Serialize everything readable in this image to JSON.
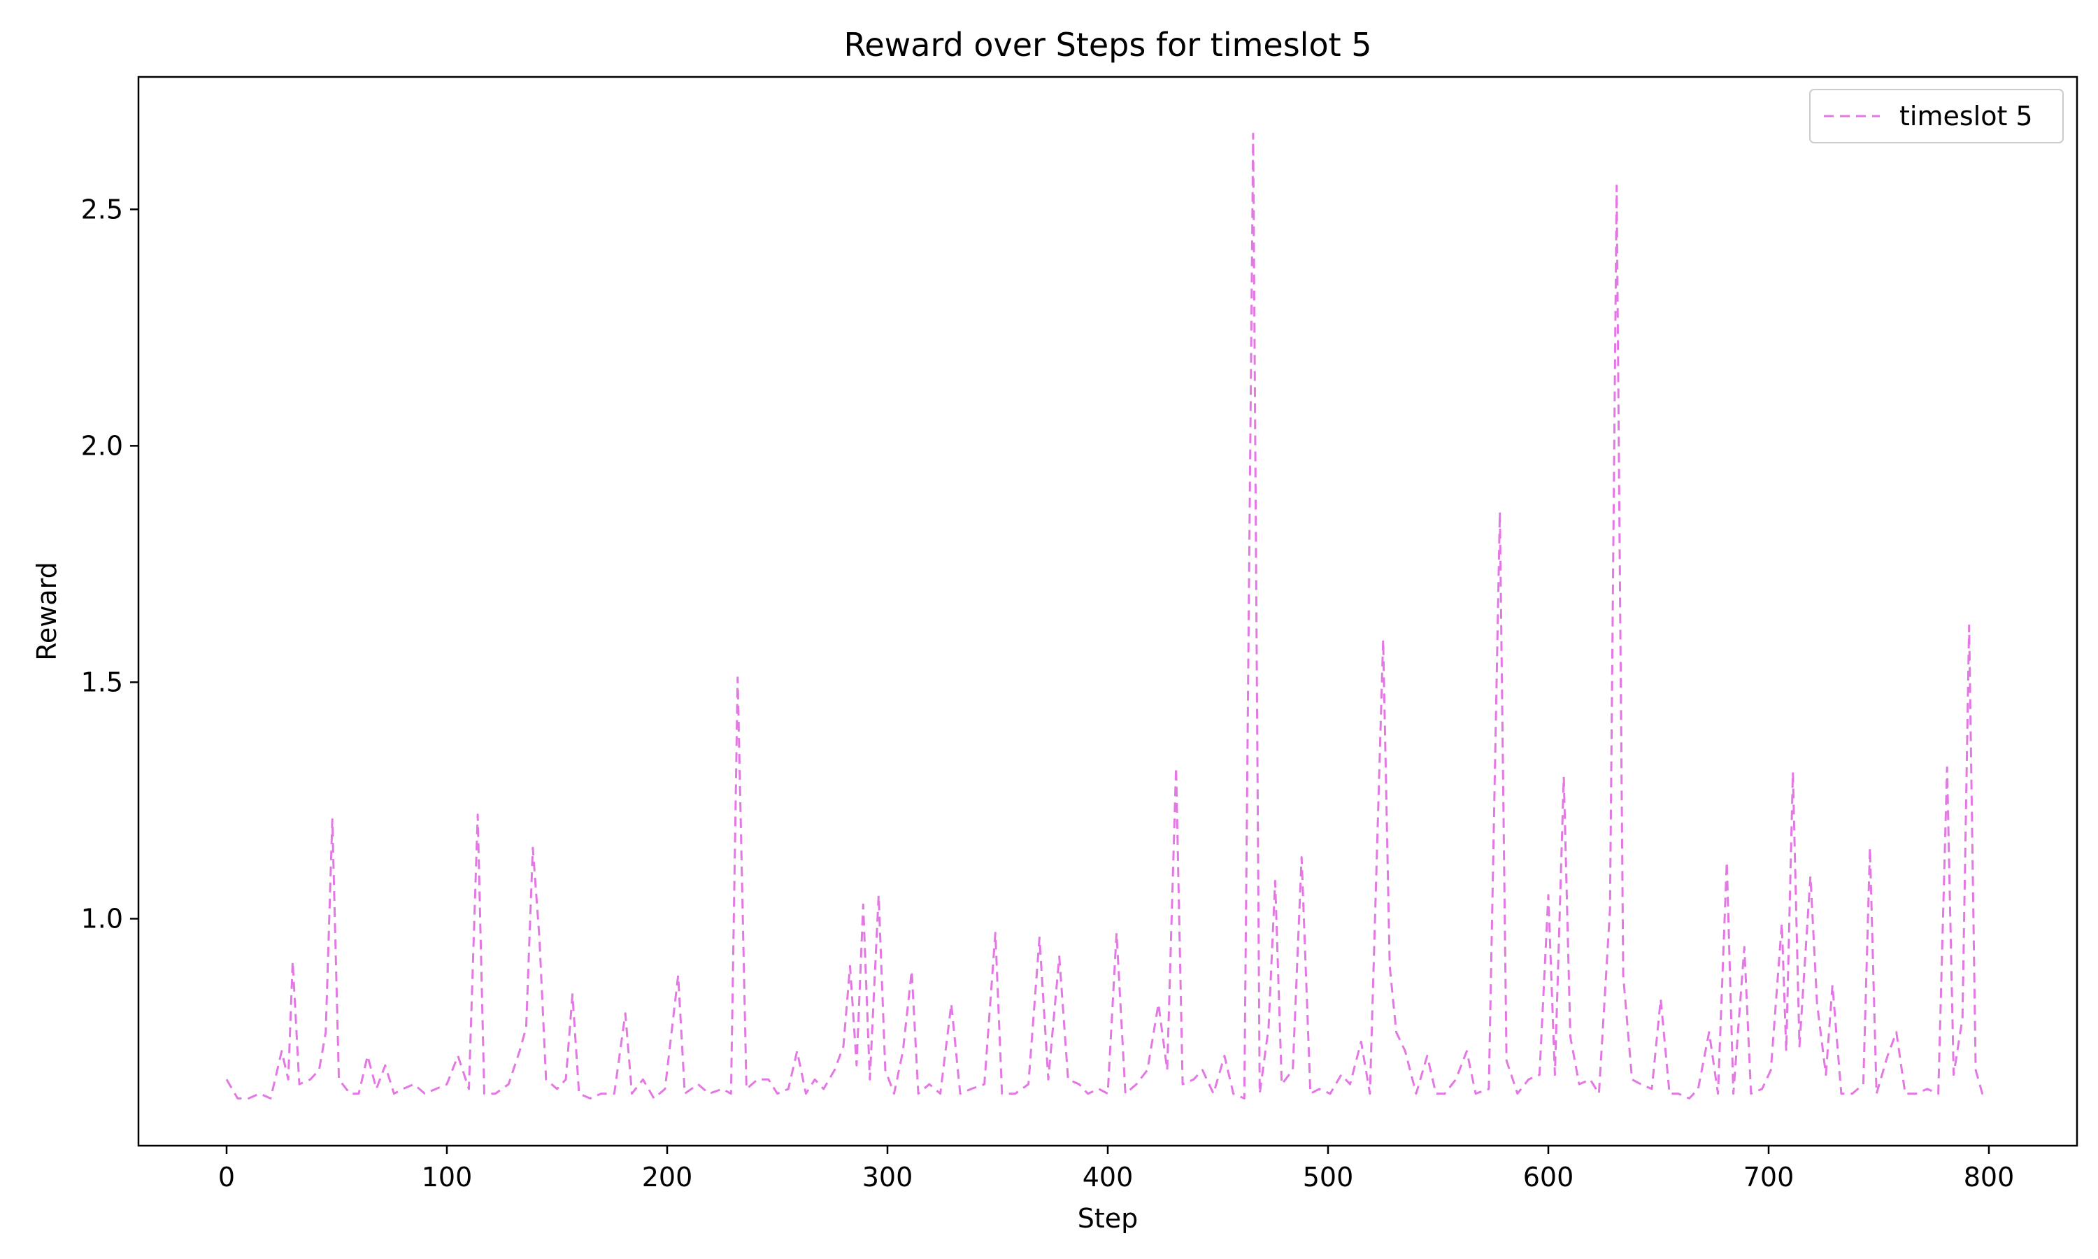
{
  "chart_data": {
    "type": "line",
    "title": "Reward over Steps for timeslot 5",
    "xlabel": "Step",
    "ylabel": "Reward",
    "xlim": [
      -40,
      840
    ],
    "ylim": [
      0.52,
      2.78
    ],
    "xticks": [
      0,
      100,
      200,
      300,
      400,
      500,
      600,
      700,
      800
    ],
    "yticks": [
      1.0,
      1.5,
      2.0,
      2.5
    ],
    "xtick_labels": [
      "0",
      "100",
      "200",
      "300",
      "400",
      "500",
      "600",
      "700",
      "800"
    ],
    "ytick_labels": [
      "1.0",
      "1.5",
      "2.0",
      "2.5"
    ],
    "grid": false,
    "legend_position": "top-right",
    "series": [
      {
        "name": "timeslot 5",
        "color": "#e377e3",
        "line_style": "dashed",
        "points": [
          [
            0,
            0.66
          ],
          [
            5,
            0.62
          ],
          [
            10,
            0.62
          ],
          [
            15,
            0.63
          ],
          [
            20,
            0.62
          ],
          [
            25,
            0.72
          ],
          [
            28,
            0.66
          ],
          [
            30,
            0.91
          ],
          [
            33,
            0.65
          ],
          [
            38,
            0.66
          ],
          [
            42,
            0.68
          ],
          [
            45,
            0.76
          ],
          [
            48,
            1.21
          ],
          [
            51,
            0.66
          ],
          [
            56,
            0.63
          ],
          [
            60,
            0.63
          ],
          [
            64,
            0.71
          ],
          [
            68,
            0.64
          ],
          [
            72,
            0.69
          ],
          [
            76,
            0.63
          ],
          [
            80,
            0.64
          ],
          [
            85,
            0.65
          ],
          [
            90,
            0.63
          ],
          [
            95,
            0.64
          ],
          [
            100,
            0.65
          ],
          [
            105,
            0.71
          ],
          [
            110,
            0.64
          ],
          [
            114,
            1.22
          ],
          [
            117,
            0.63
          ],
          [
            122,
            0.63
          ],
          [
            128,
            0.65
          ],
          [
            133,
            0.72
          ],
          [
            136,
            0.77
          ],
          [
            139,
            1.15
          ],
          [
            142,
            0.96
          ],
          [
            145,
            0.66
          ],
          [
            150,
            0.64
          ],
          [
            154,
            0.66
          ],
          [
            157,
            0.84
          ],
          [
            160,
            0.63
          ],
          [
            165,
            0.62
          ],
          [
            170,
            0.63
          ],
          [
            176,
            0.63
          ],
          [
            181,
            0.8
          ],
          [
            184,
            0.63
          ],
          [
            189,
            0.66
          ],
          [
            194,
            0.62
          ],
          [
            199,
            0.64
          ],
          [
            205,
            0.88
          ],
          [
            208,
            0.63
          ],
          [
            214,
            0.65
          ],
          [
            219,
            0.63
          ],
          [
            225,
            0.64
          ],
          [
            229,
            0.63
          ],
          [
            232,
            1.51
          ],
          [
            236,
            0.64
          ],
          [
            241,
            0.66
          ],
          [
            246,
            0.66
          ],
          [
            250,
            0.63
          ],
          [
            255,
            0.64
          ],
          [
            259,
            0.72
          ],
          [
            263,
            0.63
          ],
          [
            267,
            0.66
          ],
          [
            271,
            0.64
          ],
          [
            276,
            0.68
          ],
          [
            280,
            0.73
          ],
          [
            283,
            0.9
          ],
          [
            286,
            0.69
          ],
          [
            289,
            1.03
          ],
          [
            292,
            0.66
          ],
          [
            296,
            1.05
          ],
          [
            299,
            0.68
          ],
          [
            303,
            0.63
          ],
          [
            307,
            0.72
          ],
          [
            311,
            0.89
          ],
          [
            314,
            0.63
          ],
          [
            319,
            0.65
          ],
          [
            324,
            0.63
          ],
          [
            329,
            0.82
          ],
          [
            333,
            0.63
          ],
          [
            338,
            0.64
          ],
          [
            344,
            0.65
          ],
          [
            349,
            0.97
          ],
          [
            352,
            0.63
          ],
          [
            358,
            0.63
          ],
          [
            364,
            0.65
          ],
          [
            369,
            0.96
          ],
          [
            373,
            0.66
          ],
          [
            378,
            0.92
          ],
          [
            382,
            0.66
          ],
          [
            387,
            0.65
          ],
          [
            391,
            0.63
          ],
          [
            396,
            0.64
          ],
          [
            400,
            0.63
          ],
          [
            404,
            0.97
          ],
          [
            408,
            0.63
          ],
          [
            413,
            0.65
          ],
          [
            418,
            0.68
          ],
          [
            423,
            0.82
          ],
          [
            427,
            0.68
          ],
          [
            431,
            1.32
          ],
          [
            434,
            0.65
          ],
          [
            439,
            0.66
          ],
          [
            443,
            0.68
          ],
          [
            448,
            0.63
          ],
          [
            453,
            0.71
          ],
          [
            457,
            0.63
          ],
          [
            462,
            0.62
          ],
          [
            466,
            2.66
          ],
          [
            469,
            0.63
          ],
          [
            473,
            0.77
          ],
          [
            476,
            1.08
          ],
          [
            479,
            0.65
          ],
          [
            484,
            0.68
          ],
          [
            488,
            1.13
          ],
          [
            492,
            0.63
          ],
          [
            496,
            0.64
          ],
          [
            501,
            0.63
          ],
          [
            506,
            0.67
          ],
          [
            510,
            0.65
          ],
          [
            515,
            0.74
          ],
          [
            519,
            0.63
          ],
          [
            525,
            1.59
          ],
          [
            528,
            0.9
          ],
          [
            531,
            0.76
          ],
          [
            535,
            0.72
          ],
          [
            540,
            0.63
          ],
          [
            545,
            0.71
          ],
          [
            549,
            0.63
          ],
          [
            553,
            0.63
          ],
          [
            558,
            0.66
          ],
          [
            563,
            0.72
          ],
          [
            567,
            0.63
          ],
          [
            573,
            0.64
          ],
          [
            578,
            1.86
          ],
          [
            581,
            0.7
          ],
          [
            586,
            0.63
          ],
          [
            591,
            0.66
          ],
          [
            596,
            0.67
          ],
          [
            600,
            1.05
          ],
          [
            603,
            0.67
          ],
          [
            607,
            1.3
          ],
          [
            610,
            0.75
          ],
          [
            614,
            0.65
          ],
          [
            619,
            0.66
          ],
          [
            623,
            0.63
          ],
          [
            628,
            1.02
          ],
          [
            631,
            2.55
          ],
          [
            634,
            0.88
          ],
          [
            638,
            0.66
          ],
          [
            642,
            0.65
          ],
          [
            647,
            0.64
          ],
          [
            651,
            0.83
          ],
          [
            655,
            0.63
          ],
          [
            659,
            0.63
          ],
          [
            664,
            0.62
          ],
          [
            668,
            0.64
          ],
          [
            673,
            0.76
          ],
          [
            677,
            0.63
          ],
          [
            681,
            1.12
          ],
          [
            684,
            0.63
          ],
          [
            689,
            0.94
          ],
          [
            692,
            0.63
          ],
          [
            697,
            0.64
          ],
          [
            701,
            0.68
          ],
          [
            706,
            0.99
          ],
          [
            708,
            0.72
          ],
          [
            711,
            1.31
          ],
          [
            714,
            0.73
          ],
          [
            719,
            1.09
          ],
          [
            722,
            0.82
          ],
          [
            726,
            0.67
          ],
          [
            729,
            0.86
          ],
          [
            733,
            0.63
          ],
          [
            738,
            0.63
          ],
          [
            743,
            0.65
          ],
          [
            746,
            1.15
          ],
          [
            749,
            0.63
          ],
          [
            754,
            0.71
          ],
          [
            758,
            0.76
          ],
          [
            762,
            0.63
          ],
          [
            767,
            0.63
          ],
          [
            772,
            0.64
          ],
          [
            777,
            0.63
          ],
          [
            781,
            1.32
          ],
          [
            784,
            0.67
          ],
          [
            788,
            0.79
          ],
          [
            791,
            1.62
          ],
          [
            794,
            0.68
          ],
          [
            797,
            0.63
          ],
          [
            800,
            0.63
          ]
        ]
      }
    ]
  }
}
